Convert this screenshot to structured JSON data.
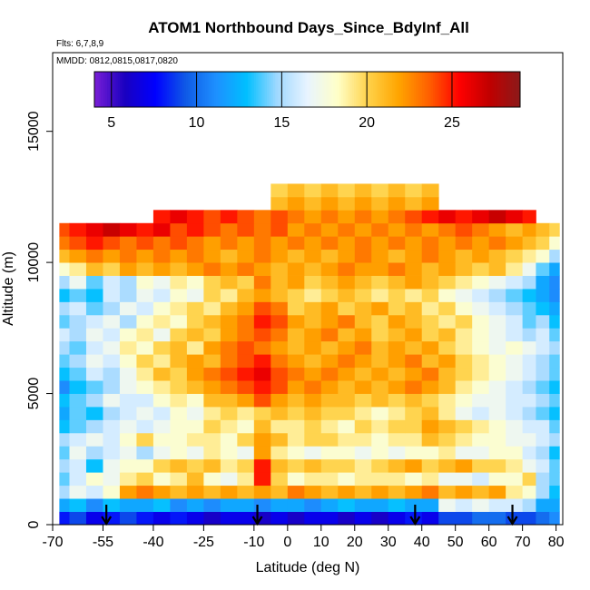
{
  "chart_data": {
    "type": "heatmap",
    "title": "ATOM1 Northbound Days_Since_BdyInf_All",
    "subtitle_flights": "Flts: 6,7,8,9",
    "subtitle_dates": "MMDD: 0812,0815,0817,0820",
    "xlabel": "Latitude (deg N)",
    "ylabel": "Altitude (m)",
    "xlim": [
      -70,
      82
    ],
    "ylim": [
      0,
      18000
    ],
    "x_ticks": [
      -70,
      -55,
      -40,
      -25,
      -10,
      0,
      10,
      20,
      30,
      40,
      50,
      60,
      70,
      80
    ],
    "x_tick_labels": [
      "-70",
      "-55",
      "-40",
      "-25",
      "-10",
      "0",
      "10",
      "20",
      "30",
      "40",
      "50",
      "60",
      "70",
      "80"
    ],
    "y_ticks": [
      0,
      5000,
      10000,
      15000
    ],
    "y_tick_labels": [
      "0",
      "5000",
      "10000",
      "15000"
    ],
    "colorbar": {
      "range": [
        4,
        29
      ],
      "ticks": [
        5,
        10,
        15,
        20,
        25
      ],
      "tick_labels": [
        "5",
        "10",
        "15",
        "20",
        "25"
      ],
      "colors": [
        "#7a1fd6",
        "#1a00c0",
        "#0000ff",
        "#0f5ae6",
        "#1e90ff",
        "#00bfff",
        "#9fd8ff",
        "#e8f4ff",
        "#ffffc8",
        "#ffd24a",
        "#ffa500",
        "#ff6000",
        "#ff0000",
        "#c00000",
        "#8b1a1a"
      ]
    },
    "profile_arrows_lat": [
      -54,
      -9,
      38,
      67
    ],
    "lat_bin_edges": [
      -68,
      -65,
      -60,
      -55,
      -50,
      -45,
      -40,
      -35,
      -30,
      -25,
      -20,
      -15,
      -10,
      -5,
      0,
      5,
      10,
      15,
      20,
      25,
      30,
      35,
      40,
      45,
      50,
      55,
      60,
      65,
      70,
      74,
      78,
      81
    ],
    "alt_bin_edges": [
      0,
      500,
      1000,
      1500,
      2000,
      2500,
      3000,
      3500,
      4000,
      4500,
      5000,
      5500,
      6000,
      6500,
      7000,
      7500,
      8000,
      8500,
      9000,
      9500,
      10000,
      10500,
      11000,
      11500,
      12000,
      12500,
      13000
    ],
    "days_grid": [
      [
        8,
        9,
        7,
        8,
        9,
        8,
        7,
        8,
        7,
        6,
        7,
        7,
        6,
        7,
        6,
        7,
        7,
        6,
        7,
        6,
        7,
        8,
        7,
        9,
        9,
        10,
        10,
        9,
        9,
        10,
        11
      ],
      [
        12,
        13,
        11,
        13,
        12,
        12,
        13,
        11,
        12,
        11,
        12,
        12,
        11,
        12,
        12,
        11,
        12,
        13,
        12,
        12,
        13,
        12,
        12,
        17,
        16,
        17,
        16,
        16,
        15,
        12,
        12
      ],
      [
        15,
        17,
        16,
        18,
        22,
        23,
        22,
        21,
        22,
        21,
        22,
        21,
        22,
        21,
        23,
        22,
        21,
        22,
        21,
        22,
        21,
        22,
        23,
        21,
        22,
        21,
        22,
        19,
        18,
        15,
        13
      ],
      [
        14,
        16,
        18,
        17,
        19,
        20,
        18,
        19,
        21,
        18,
        17,
        19,
        25,
        20,
        18,
        19,
        19,
        18,
        19,
        19,
        19,
        18,
        19,
        17,
        17,
        16,
        18,
        18,
        20,
        15,
        14
      ],
      [
        15,
        16,
        13,
        17,
        18,
        18,
        20,
        21,
        20,
        21,
        19,
        20,
        25,
        21,
        20,
        21,
        20,
        20,
        19,
        20,
        21,
        22,
        20,
        21,
        22,
        20,
        20,
        19,
        17,
        16,
        14
      ],
      [
        14,
        17,
        15,
        16,
        17,
        15,
        17,
        18,
        17,
        19,
        18,
        17,
        22,
        19,
        18,
        17,
        18,
        18,
        17,
        18,
        17,
        18,
        18,
        19,
        17,
        17,
        18,
        18,
        16,
        15,
        13
      ],
      [
        15,
        16,
        17,
        16,
        18,
        20,
        18,
        18,
        19,
        19,
        18,
        20,
        22,
        21,
        19,
        20,
        20,
        19,
        19,
        18,
        19,
        19,
        21,
        20,
        19,
        18,
        18,
        17,
        17,
        16,
        15
      ],
      [
        13,
        14,
        15,
        16,
        17,
        16,
        17,
        18,
        18,
        20,
        19,
        18,
        21,
        19,
        19,
        20,
        19,
        18,
        20,
        19,
        20,
        20,
        22,
        21,
        20,
        19,
        18,
        17,
        16,
        16,
        14
      ],
      [
        12,
        14,
        13,
        15,
        16,
        17,
        16,
        18,
        17,
        19,
        20,
        19,
        20,
        21,
        20,
        21,
        20,
        20,
        19,
        18,
        19,
        20,
        21,
        19,
        17,
        16,
        17,
        16,
        15,
        14,
        13
      ],
      [
        13,
        14,
        15,
        17,
        16,
        16,
        18,
        19,
        18,
        21,
        21,
        22,
        24,
        22,
        21,
        22,
        21,
        21,
        20,
        21,
        20,
        21,
        20,
        19,
        18,
        17,
        17,
        16,
        16,
        15,
        14
      ],
      [
        11,
        13,
        14,
        15,
        17,
        18,
        19,
        20,
        21,
        22,
        23,
        24,
        25,
        24,
        22,
        23,
        22,
        21,
        22,
        21,
        22,
        23,
        22,
        21,
        19,
        18,
        17,
        16,
        15,
        14,
        13
      ],
      [
        13,
        14,
        16,
        15,
        17,
        19,
        21,
        20,
        22,
        23,
        24,
        25,
        26,
        24,
        23,
        22,
        23,
        22,
        21,
        22,
        21,
        22,
        23,
        21,
        20,
        19,
        18,
        17,
        16,
        15,
        14
      ],
      [
        14,
        15,
        17,
        16,
        18,
        20,
        19,
        21,
        22,
        21,
        23,
        24,
        25,
        23,
        22,
        21,
        22,
        23,
        22,
        21,
        22,
        23,
        21,
        22,
        20,
        19,
        18,
        17,
        16,
        15,
        14
      ],
      [
        15,
        14,
        16,
        17,
        19,
        18,
        20,
        21,
        19,
        22,
        23,
        24,
        23,
        22,
        21,
        22,
        21,
        22,
        23,
        21,
        22,
        21,
        22,
        20,
        19,
        18,
        17,
        18,
        17,
        16,
        15
      ],
      [
        16,
        15,
        17,
        16,
        18,
        19,
        17,
        20,
        21,
        20,
        22,
        23,
        24,
        23,
        21,
        22,
        23,
        21,
        22,
        20,
        21,
        22,
        20,
        21,
        19,
        18,
        17,
        16,
        15,
        16,
        14
      ],
      [
        14,
        15,
        16,
        17,
        15,
        18,
        19,
        18,
        20,
        21,
        22,
        23,
        25,
        24,
        22,
        21,
        22,
        23,
        21,
        20,
        22,
        21,
        20,
        19,
        20,
        18,
        17,
        16,
        14,
        15,
        13
      ],
      [
        15,
        16,
        14,
        15,
        17,
        16,
        18,
        19,
        20,
        19,
        21,
        22,
        24,
        23,
        20,
        21,
        22,
        20,
        21,
        22,
        20,
        21,
        19,
        20,
        18,
        17,
        16,
        15,
        14,
        13,
        12
      ],
      [
        13,
        14,
        13,
        16,
        15,
        17,
        16,
        18,
        17,
        20,
        19,
        21,
        22,
        21,
        20,
        19,
        20,
        21,
        20,
        19,
        20,
        19,
        20,
        18,
        17,
        16,
        15,
        14,
        13,
        12,
        11
      ],
      [
        15,
        17,
        14,
        16,
        15,
        18,
        17,
        19,
        18,
        20,
        21,
        20,
        23,
        21,
        22,
        20,
        21,
        22,
        21,
        20,
        21,
        22,
        21,
        20,
        19,
        18,
        17,
        16,
        15,
        12,
        11
      ],
      [
        18,
        19,
        21,
        20,
        22,
        21,
        22,
        21,
        22,
        23,
        22,
        23,
        22,
        21,
        22,
        21,
        22,
        23,
        22,
        22,
        23,
        22,
        21,
        22,
        21,
        20,
        21,
        19,
        17,
        14,
        12
      ],
      [
        21,
        22,
        23,
        22,
        23,
        22,
        23,
        22,
        23,
        22,
        21,
        22,
        23,
        22,
        21,
        22,
        21,
        22,
        23,
        22,
        21,
        22,
        23,
        22,
        21,
        22,
        21,
        20,
        19,
        18,
        15
      ],
      [
        23,
        24,
        25,
        24,
        23,
        24,
        23,
        24,
        23,
        22,
        23,
        22,
        23,
        22,
        23,
        22,
        23,
        22,
        23,
        22,
        23,
        22,
        23,
        22,
        23,
        22,
        23,
        22,
        21,
        20,
        18
      ],
      [
        24,
        25,
        26,
        27,
        26,
        25,
        26,
        24,
        25,
        24,
        23,
        24,
        23,
        24,
        22,
        23,
        22,
        23,
        22,
        23,
        22,
        23,
        22,
        23,
        24,
        23,
        22,
        21,
        22,
        21,
        20
      ],
      [
        null,
        null,
        null,
        null,
        null,
        null,
        25,
        26,
        25,
        24,
        25,
        24,
        23,
        24,
        23,
        22,
        23,
        22,
        23,
        22,
        23,
        24,
        25,
        26,
        25,
        26,
        27,
        26,
        25,
        null,
        null
      ],
      [
        null,
        null,
        null,
        null,
        null,
        null,
        null,
        null,
        null,
        null,
        null,
        null,
        null,
        21,
        22,
        21,
        22,
        21,
        22,
        21,
        22,
        21,
        22,
        null,
        null,
        null,
        null,
        null,
        null,
        null,
        null
      ],
      [
        null,
        null,
        null,
        null,
        null,
        null,
        null,
        null,
        null,
        null,
        null,
        null,
        null,
        20,
        21,
        20,
        21,
        20,
        21,
        20,
        21,
        20,
        21,
        null,
        null,
        null,
        null,
        null,
        null,
        null,
        null
      ]
    ]
  }
}
